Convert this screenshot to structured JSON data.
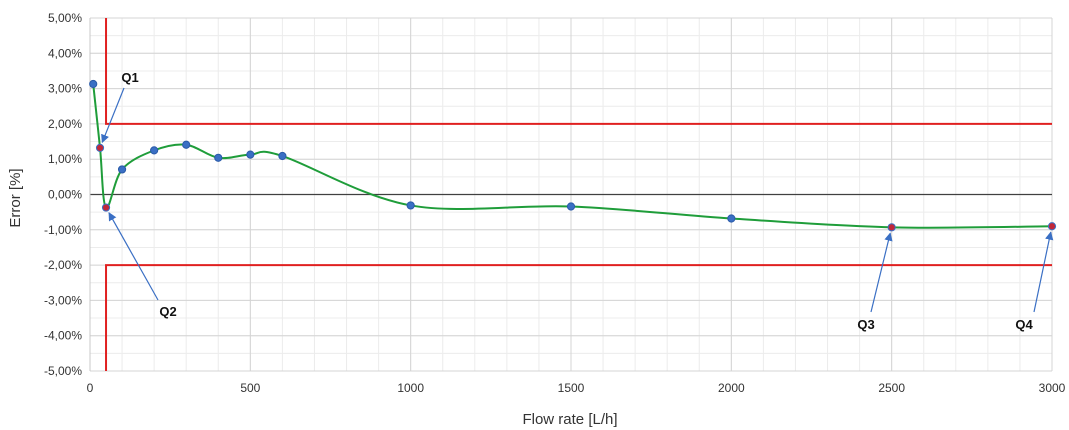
{
  "chart_data": {
    "type": "line",
    "title": "",
    "xlabel": "Flow rate [L/h]",
    "ylabel": "Error [%]",
    "xlim": [
      0,
      3000
    ],
    "ylim": [
      -5,
      5
    ],
    "x_ticks": [
      {
        "value": 0,
        "label": "0"
      },
      {
        "value": 500,
        "label": "500"
      },
      {
        "value": 1000,
        "label": "1000"
      },
      {
        "value": 1500,
        "label": "1500"
      },
      {
        "value": 2000,
        "label": "2000"
      },
      {
        "value": 2500,
        "label": "2500"
      },
      {
        "value": 3000,
        "label": "3000"
      }
    ],
    "y_ticks": [
      {
        "value": 5,
        "label": "5,00%"
      },
      {
        "value": 4,
        "label": "4,00%"
      },
      {
        "value": 3,
        "label": "3,00%"
      },
      {
        "value": 2,
        "label": "2,00%"
      },
      {
        "value": 1,
        "label": "1,00%"
      },
      {
        "value": 0,
        "label": "0,00%"
      },
      {
        "value": -1,
        "label": "-1,00%"
      },
      {
        "value": -2,
        "label": "-2,00%"
      },
      {
        "value": -3,
        "label": "-3,00%"
      },
      {
        "value": -4,
        "label": "-4,00%"
      },
      {
        "value": -5,
        "label": "-5,00%"
      }
    ],
    "grid": true,
    "legend": "none",
    "series": [
      {
        "kind": "measured",
        "color": "#1f9d3a",
        "marker_color": "#3a6fc4",
        "x": [
          10,
          31.25,
          50,
          100,
          200,
          300,
          400,
          500,
          600,
          1000,
          1500,
          2000,
          2500,
          3000
        ],
        "y": [
          3.13,
          1.32,
          -0.37,
          0.71,
          1.25,
          1.41,
          1.04,
          1.13,
          1.09,
          -0.31,
          -0.34,
          -0.68,
          -0.93,
          -0.9
        ],
        "highlight_indices": [
          1,
          2,
          12,
          13
        ],
        "highlight_color": "#c0283a"
      },
      {
        "kind": "upper_limit",
        "color": "#e02020",
        "x": [
          50,
          50,
          3000
        ],
        "y": [
          5,
          2,
          2
        ]
      },
      {
        "kind": "lower_limit",
        "color": "#e02020",
        "x": [
          50,
          50,
          3000
        ],
        "y": [
          -5,
          -2,
          -2
        ]
      }
    ],
    "annotations": [
      {
        "label": "Q1",
        "x": 31.25,
        "y": 1.32
      },
      {
        "label": "Q2",
        "x": 50,
        "y": -0.37
      },
      {
        "label": "Q3",
        "x": 2500,
        "y": -0.93
      },
      {
        "label": "Q4",
        "x": 3000,
        "y": -0.9
      }
    ],
    "arrow_color": "#3a6fc4"
  }
}
